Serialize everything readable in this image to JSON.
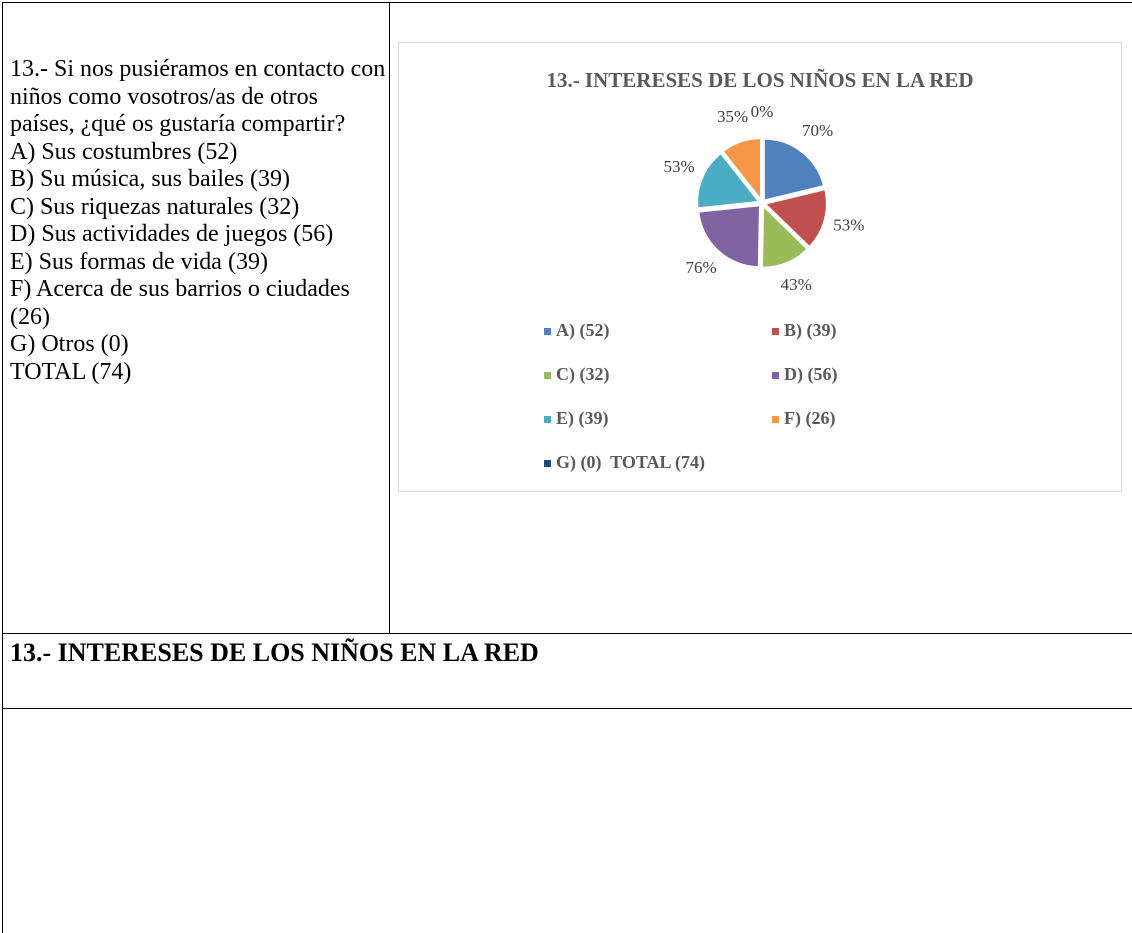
{
  "document": {
    "question": [
      "13.- Si nos pusiéramos en contacto con niños como vosotros/as de otros países, ¿qué os gustaría compartir?",
      "A) Sus costumbres (52)",
      "B) Su música, sus bailes (39)",
      "C) Sus riquezas naturales (32)",
      "D) Sus actividades de juegos (56)",
      "E) Sus formas de vida (39)",
      "F) Acerca de sus barrios o ciudades (26)",
      "G) Otros (0)",
      "TOTAL (74)"
    ],
    "heading": "13.- INTERESES DE LOS NIÑOS EN LA RED"
  },
  "chart_data": {
    "type": "pie",
    "title": "13.- INTERESES DE LOS NIÑOS EN LA RED",
    "categories": [
      "A) (52)",
      "B) (39)",
      "C) (32)",
      "D) (56)",
      "E) (39)",
      "F) (26)",
      "G) (0)  TOTAL (74)"
    ],
    "values": [
      70,
      53,
      43,
      76,
      53,
      35,
      0
    ],
    "value_labels": [
      "70%",
      "53%",
      "43%",
      "76%",
      "53%",
      "35%",
      "0%"
    ],
    "colors": [
      "#4f81bd",
      "#c0504d",
      "#9bbb59",
      "#8064a2",
      "#4bacc6",
      "#f79646",
      "#1f497d"
    ],
    "legend": "bottom"
  }
}
